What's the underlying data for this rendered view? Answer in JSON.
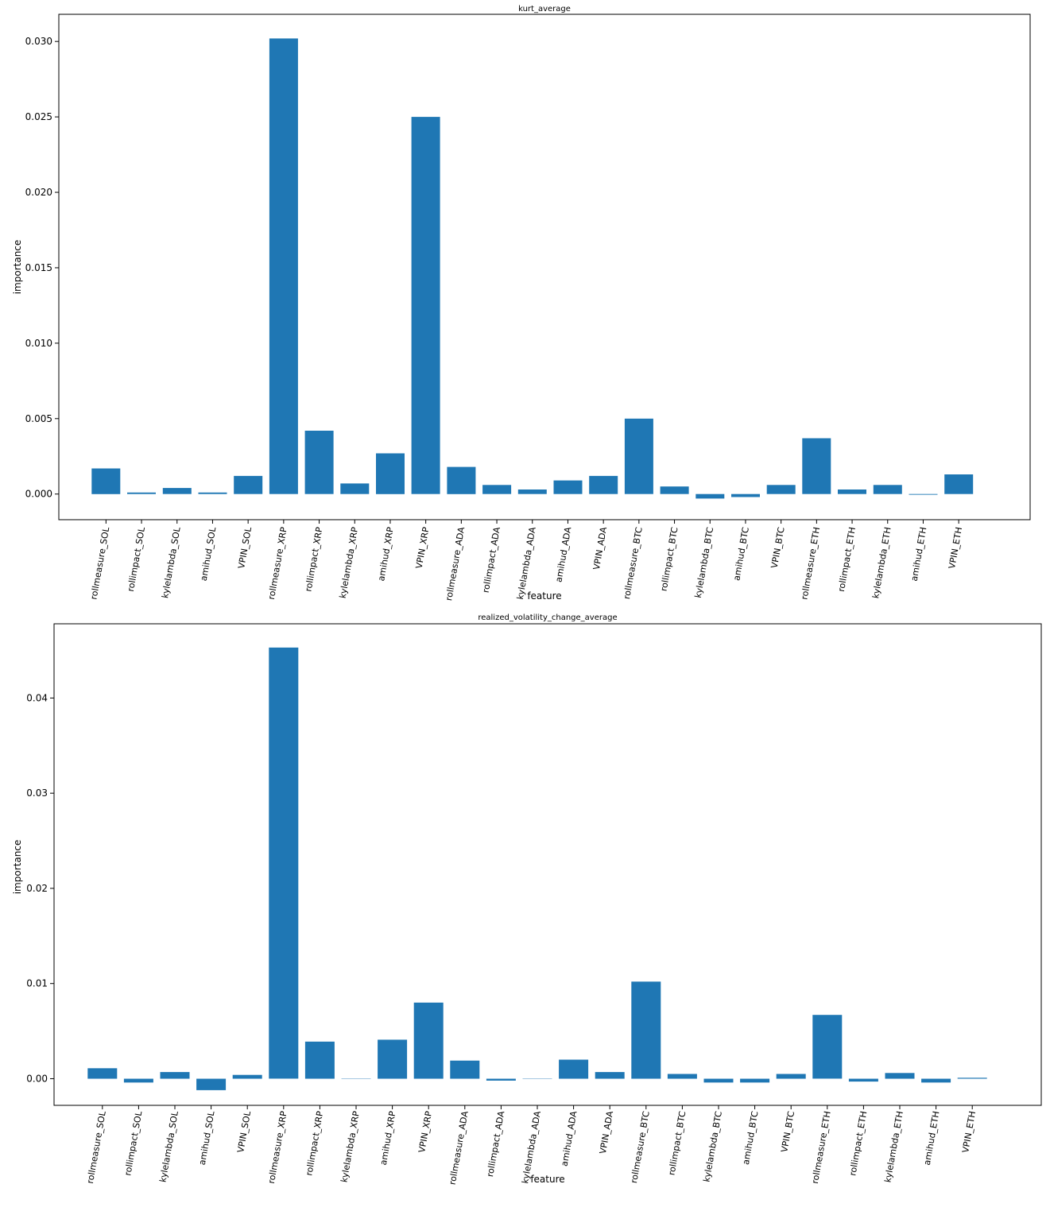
{
  "chart_data": [
    {
      "type": "bar",
      "title": "kurt_average",
      "xlabel": "feature",
      "ylabel": "importance",
      "ylim": [
        -0.0017,
        0.0318
      ],
      "yticks": [
        0.0,
        0.005,
        0.01,
        0.015,
        0.02,
        0.025,
        0.03
      ],
      "ytick_labels": [
        "0.000",
        "0.005",
        "0.010",
        "0.015",
        "0.020",
        "0.025",
        "0.030"
      ],
      "color": "#1f77b4",
      "categories": [
        "rollmeasure_SOL",
        "rollimpact_SOL",
        "kylelambda_SOL",
        "amihud_SOL",
        "VPIN_SOL",
        "rollmeasure_XRP",
        "rollimpact_XRP",
        "kylelambda_XRP",
        "amihud_XRP",
        "VPIN_XRP",
        "rollmeasure_ADA",
        "rollimpact_ADA",
        "kylelambda_ADA",
        "amihud_ADA",
        "VPIN_ADA",
        "rollmeasure_BTC",
        "rollimpact_BTC",
        "kylelambda_BTC",
        "amihud_BTC",
        "VPIN_BTC",
        "rollmeasure_ETH",
        "rollimpact_ETH",
        "kylelambda_ETH",
        "amihud_ETH",
        "VPIN_ETH"
      ],
      "values": [
        0.0017,
        0.0001,
        0.0004,
        0.0001,
        0.0012,
        0.0302,
        0.0042,
        0.0007,
        0.0027,
        0.025,
        0.0018,
        0.0006,
        0.0003,
        0.0009,
        0.0012,
        0.005,
        0.0005,
        -0.0003,
        -0.0002,
        0.0006,
        0.0037,
        0.0003,
        0.0006,
        -5e-05,
        0.0013
      ]
    },
    {
      "type": "bar",
      "title": "realized_volatility_change_average",
      "xlabel": "feature",
      "ylabel": "importance",
      "ylim": [
        -0.0028,
        0.0478
      ],
      "yticks": [
        0.0,
        0.01,
        0.02,
        0.03,
        0.04
      ],
      "ytick_labels": [
        "0.00",
        "0.01",
        "0.02",
        "0.03",
        "0.04"
      ],
      "color": "#1f77b4",
      "categories": [
        "rollmeasure_SOL",
        "rollimpact_SOL",
        "kylelambda_SOL",
        "amihud_SOL",
        "VPIN_SOL",
        "rollmeasure_XRP",
        "rollimpact_XRP",
        "kylelambda_XRP",
        "amihud_XRP",
        "VPIN_XRP",
        "rollmeasure_ADA",
        "rollimpact_ADA",
        "kylelambda_ADA",
        "amihud_ADA",
        "VPIN_ADA",
        "rollmeasure_BTC",
        "rollimpact_BTC",
        "kylelambda_BTC",
        "amihud_BTC",
        "VPIN_BTC",
        "rollmeasure_ETH",
        "rollimpact_ETH",
        "kylelambda_ETH",
        "amihud_ETH",
        "VPIN_ETH"
      ],
      "values": [
        0.0011,
        -0.0004,
        0.0007,
        -0.0012,
        0.0004,
        0.0453,
        0.0039,
        0.0,
        0.0041,
        0.008,
        0.0019,
        -0.0002,
        0.0,
        0.002,
        0.0007,
        0.0102,
        0.0005,
        -0.0004,
        -0.0004,
        0.0005,
        0.0067,
        -0.0003,
        0.0006,
        -0.0004,
        0.0001
      ]
    }
  ]
}
